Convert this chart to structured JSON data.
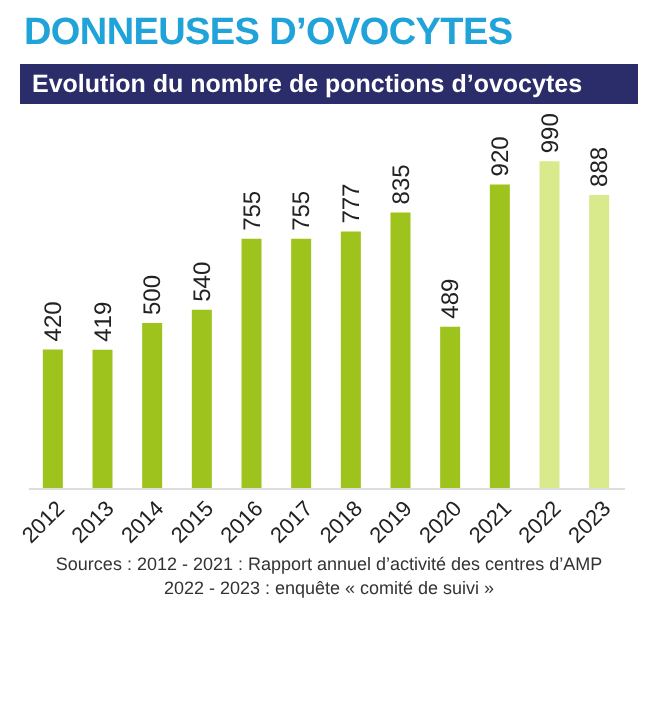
{
  "chart_data": {
    "type": "bar",
    "title": "DONNEUSES D’OVOCYTES",
    "subtitle": "Evolution du nombre de ponctions d’ovocytes",
    "categories": [
      "2012",
      "2013",
      "2014",
      "2015",
      "2016",
      "2017",
      "2018",
      "2019",
      "2020",
      "2021",
      "2022",
      "2023"
    ],
    "values": [
      420,
      419,
      500,
      540,
      755,
      755,
      777,
      835,
      489,
      920,
      990,
      888
    ],
    "colors": [
      "#9dc31c",
      "#9dc31c",
      "#9dc31c",
      "#9dc31c",
      "#9dc31c",
      "#9dc31c",
      "#9dc31c",
      "#9dc31c",
      "#9dc31c",
      "#9dc31c",
      "#d8ea8c",
      "#d8ea8c"
    ],
    "data_labels": true,
    "annotations": [
      "Sources : 2012 - 2021 : Rapport annuel d’activité des centres d’AMP",
      "2022 - 2023 : enquête « comité de suivi »"
    ]
  }
}
